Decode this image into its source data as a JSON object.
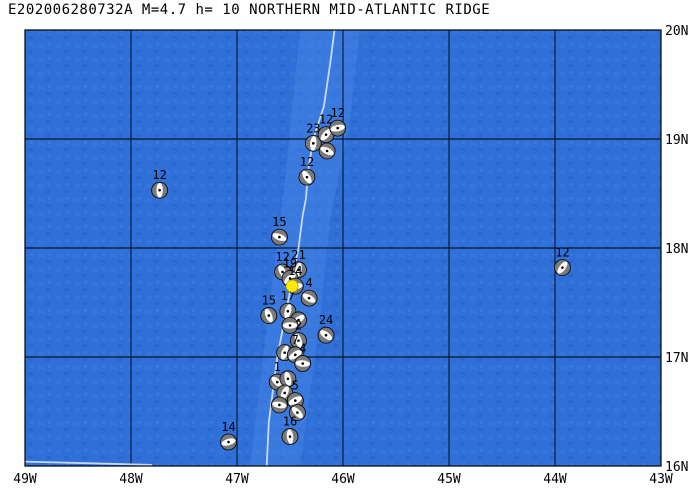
{
  "title": "E202006280732A M=4.7 h= 10 NORTHERN MID-ATLANTIC RIDGE",
  "colors": {
    "ocean": "#2f6fd8",
    "ocean_light": "#4a86e6",
    "grid": "#000000",
    "ridge": "#c8d8f5",
    "event": "#ffeb00",
    "beachball_dark": "#7a7a7a",
    "beachball_light": "#ffffff"
  },
  "map": {
    "lon_range": [
      -49,
      -43
    ],
    "lat_range": [
      16,
      20
    ],
    "lon_ticks": [
      {
        "value": -49,
        "label": "49W"
      },
      {
        "value": -48,
        "label": "48W"
      },
      {
        "value": -47,
        "label": "47W"
      },
      {
        "value": -46,
        "label": "46W"
      },
      {
        "value": -45,
        "label": "45W"
      },
      {
        "value": -44,
        "label": "44W"
      },
      {
        "value": -43,
        "label": "43W"
      }
    ],
    "lat_ticks": [
      {
        "value": 20,
        "label": "20N"
      },
      {
        "value": 19,
        "label": "19N"
      },
      {
        "value": 18,
        "label": "18N"
      },
      {
        "value": 17,
        "label": "17N"
      },
      {
        "value": 16,
        "label": "16N"
      }
    ],
    "ridge_line": [
      [
        -46.08,
        20.0
      ],
      [
        -46.12,
        19.7
      ],
      [
        -46.18,
        19.3
      ],
      [
        -46.28,
        19.0
      ],
      [
        -46.33,
        18.7
      ],
      [
        -46.35,
        18.45
      ],
      [
        -46.38,
        18.3
      ],
      [
        -46.42,
        18.0
      ],
      [
        -46.48,
        17.7
      ],
      [
        -46.56,
        17.3
      ],
      [
        -46.62,
        17.0
      ],
      [
        -46.66,
        16.7
      ],
      [
        -46.7,
        16.4
      ],
      [
        -46.72,
        16.0
      ]
    ],
    "shore_line": [
      [
        -49.0,
        16.04
      ],
      [
        -48.2,
        16.02
      ],
      [
        -47.8,
        16.01
      ]
    ],
    "main_event": {
      "lon": -46.48,
      "lat": 17.65
    },
    "events": [
      {
        "lon": -47.73,
        "lat": 18.53,
        "label": "12"
      },
      {
        "lon": -43.93,
        "lat": 17.82,
        "label": "12"
      },
      {
        "lon": -47.08,
        "lat": 16.22,
        "label": "14"
      },
      {
        "lon": -46.6,
        "lat": 18.1,
        "label": "15"
      },
      {
        "lon": -46.34,
        "lat": 18.65,
        "label": "12"
      },
      {
        "lon": -46.28,
        "lat": 18.96,
        "label": "23"
      },
      {
        "lon": -46.16,
        "lat": 19.04,
        "label": "12"
      },
      {
        "lon": -46.05,
        "lat": 19.1,
        "label": "12"
      },
      {
        "lon": -46.15,
        "lat": 18.89,
        "label": ""
      },
      {
        "lon": -46.57,
        "lat": 17.78,
        "label": "12"
      },
      {
        "lon": -46.42,
        "lat": 17.8,
        "label": "21"
      },
      {
        "lon": -46.5,
        "lat": 17.72,
        "label": "19"
      },
      {
        "lon": -46.45,
        "lat": 17.65,
        "label": "14"
      },
      {
        "lon": -46.32,
        "lat": 17.54,
        "label": "4"
      },
      {
        "lon": -46.7,
        "lat": 17.38,
        "label": "15"
      },
      {
        "lon": -46.52,
        "lat": 17.42,
        "label": "17"
      },
      {
        "lon": -46.42,
        "lat": 17.34,
        "label": ""
      },
      {
        "lon": -46.5,
        "lat": 17.29,
        "label": ""
      },
      {
        "lon": -46.16,
        "lat": 17.2,
        "label": "24"
      },
      {
        "lon": -46.42,
        "lat": 17.15,
        "label": "2"
      },
      {
        "lon": -46.55,
        "lat": 17.04,
        "label": ""
      },
      {
        "lon": -46.45,
        "lat": 17.02,
        "label": "7"
      },
      {
        "lon": -46.38,
        "lat": 16.94,
        "label": "4"
      },
      {
        "lon": -46.62,
        "lat": 16.77,
        "label": "1"
      },
      {
        "lon": -46.52,
        "lat": 16.8,
        "label": ""
      },
      {
        "lon": -46.55,
        "lat": 16.67,
        "label": ""
      },
      {
        "lon": -46.45,
        "lat": 16.6,
        "label": "5"
      },
      {
        "lon": -46.6,
        "lat": 16.56,
        "label": ""
      },
      {
        "lon": -46.43,
        "lat": 16.49,
        "label": ""
      },
      {
        "lon": -46.5,
        "lat": 16.27,
        "label": "16"
      }
    ]
  }
}
